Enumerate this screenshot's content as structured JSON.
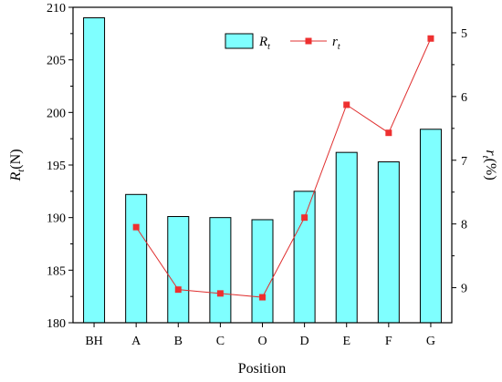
{
  "chart_data": {
    "type": "bar",
    "categories": [
      "BH",
      "A",
      "B",
      "C",
      "O",
      "D",
      "E",
      "F",
      "G"
    ],
    "series": [
      {
        "name": "R",
        "name_subscript": "t",
        "type": "bar",
        "axis": "left",
        "values": [
          209.0,
          192.2,
          190.1,
          190.0,
          189.8,
          192.5,
          196.2,
          195.3,
          198.4
        ]
      },
      {
        "name": "r",
        "name_subscript": "t",
        "type": "line",
        "axis": "right",
        "values": [
          null,
          8.05,
          9.03,
          9.09,
          9.15,
          7.9,
          6.13,
          6.57,
          5.09
        ]
      }
    ],
    "xlabel": "Position",
    "ylabel_left": {
      "main": "R",
      "sub": "t",
      "tail": "(N)"
    },
    "ylabel_right": {
      "main": "r",
      "sub": "t",
      "tail": "(%)"
    },
    "ylim_left": [
      180,
      210
    ],
    "yticks_left": [
      180,
      185,
      190,
      195,
      200,
      205,
      210
    ],
    "ylim_right": [
      4.6,
      9.55
    ],
    "yticks_right": [
      5,
      6,
      7,
      8,
      9
    ],
    "right_axis_inverted": true,
    "legend": "top-center",
    "grid": false,
    "colors": {
      "bar_fill": "#7fffff",
      "bar_stroke": "#000000",
      "line": "#e03030",
      "marker": "#ee3030"
    }
  }
}
